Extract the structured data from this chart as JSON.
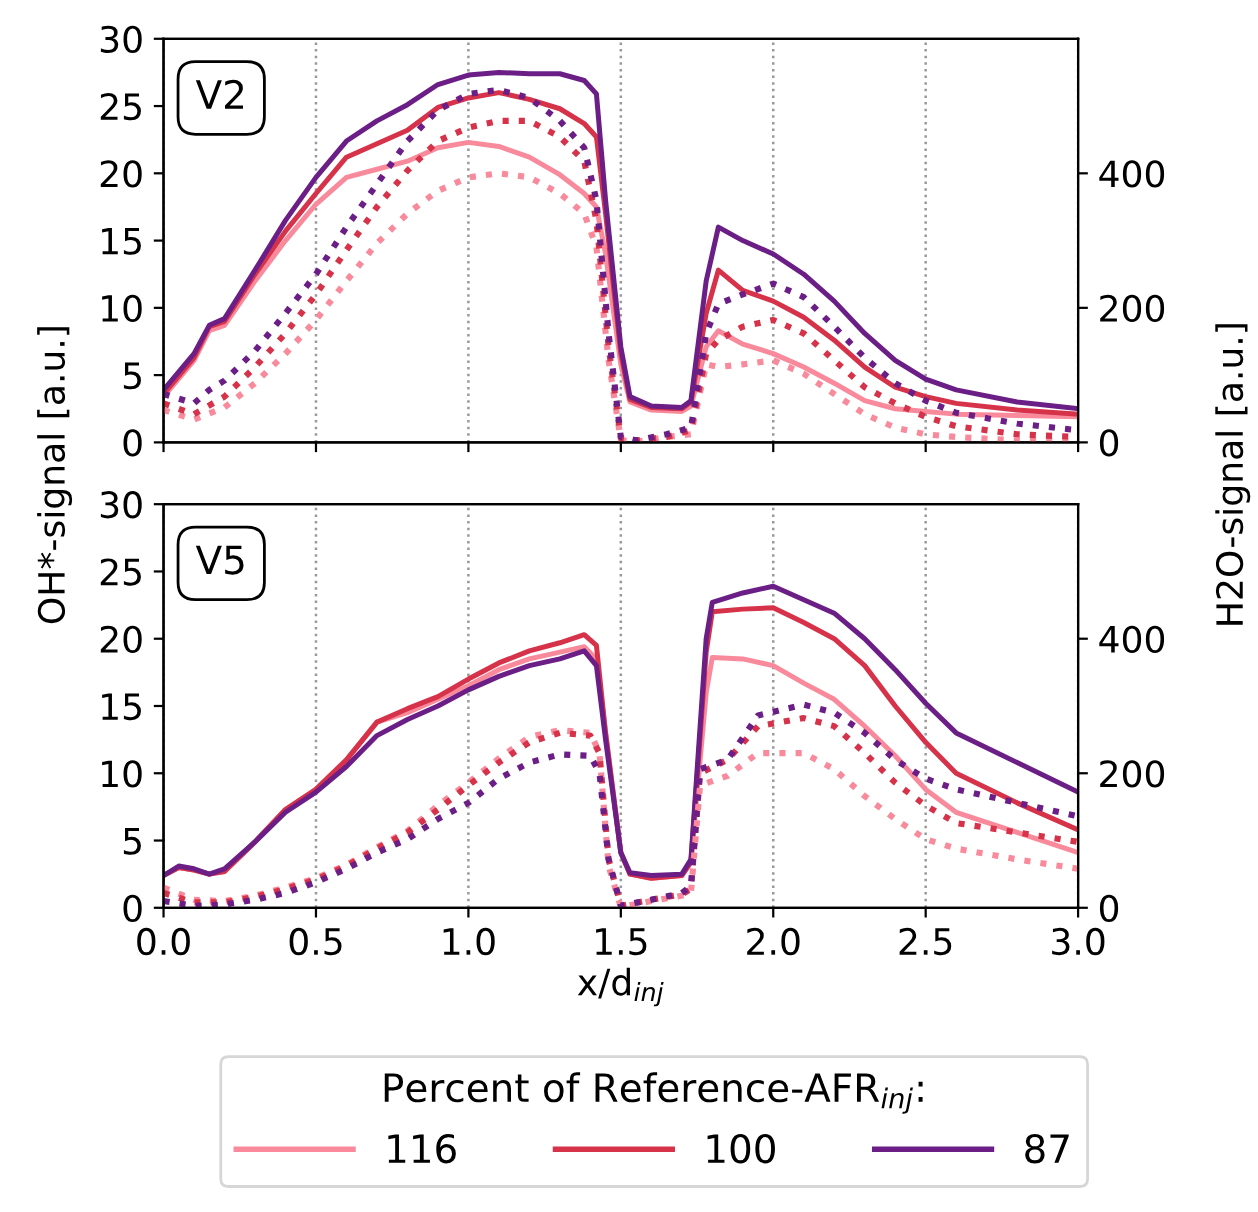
{
  "chart_data": [
    {
      "type": "line",
      "annotations": [
        "V2"
      ],
      "ylabel": "OH*-signal [a.u.]",
      "y2label": "H2O-signal [a.u.]",
      "xlim": [
        0,
        3
      ],
      "xticks": [
        0,
        0.5,
        1,
        1.5,
        2,
        2.5,
        3
      ],
      "ylim": [
        0,
        30
      ],
      "yticks": [
        0,
        5,
        10,
        15,
        20,
        25,
        30
      ],
      "y2lim": [
        0,
        600
      ],
      "y2ticks": [
        0,
        200,
        400
      ],
      "grid": "x",
      "tick_labels": "y",
      "series": [
        {
          "color": "#f98a9c",
          "line_style": "solid",
          "x": [
            0,
            0.1,
            0.15,
            0.2,
            0.3,
            0.4,
            0.5,
            0.6,
            0.7,
            0.8,
            0.9,
            1.0,
            1.1,
            1.2,
            1.3,
            1.38,
            1.42,
            1.45,
            1.5,
            1.53,
            1.6,
            1.7,
            1.73,
            1.78,
            1.82,
            1.9,
            2.0,
            2.1,
            2.2,
            2.3,
            2.4,
            2.5,
            2.6,
            2.8,
            3.0
          ],
          "values": [
            3.4,
            6.1,
            8.3,
            8.7,
            12.0,
            15.0,
            17.7,
            19.7,
            20.3,
            20.9,
            21.9,
            22.3,
            22.0,
            21.2,
            19.9,
            18.5,
            17.5,
            14,
            5.8,
            3.0,
            2.4,
            2.3,
            2.7,
            7.1,
            8.3,
            7.3,
            6.6,
            5.6,
            4.4,
            3.1,
            2.5,
            2.3,
            2.1,
            2.0,
            1.9
          ]
        },
        {
          "color": "#d6334b",
          "line_style": "solid",
          "x": [
            0,
            0.1,
            0.15,
            0.2,
            0.3,
            0.4,
            0.5,
            0.6,
            0.7,
            0.8,
            0.9,
            1.0,
            1.1,
            1.2,
            1.3,
            1.38,
            1.42,
            1.45,
            1.5,
            1.53,
            1.6,
            1.7,
            1.73,
            1.78,
            1.82,
            1.9,
            2.0,
            2.1,
            2.2,
            2.3,
            2.4,
            2.5,
            2.6,
            2.8,
            3.0
          ],
          "values": [
            3.6,
            6.3,
            8.6,
            9.0,
            12.5,
            15.7,
            18.5,
            21.2,
            22.2,
            23.2,
            24.9,
            25.6,
            26.0,
            25.5,
            24.8,
            23.7,
            22.7,
            17,
            6.6,
            3.2,
            2.6,
            2.5,
            3.0,
            9.6,
            12.8,
            11.3,
            10.5,
            9.3,
            7.6,
            5.6,
            4.1,
            3.4,
            2.9,
            2.4,
            2.1
          ]
        },
        {
          "color": "#6b1f86",
          "line_style": "solid",
          "x": [
            0,
            0.1,
            0.15,
            0.2,
            0.3,
            0.4,
            0.5,
            0.6,
            0.7,
            0.8,
            0.9,
            1.0,
            1.1,
            1.2,
            1.3,
            1.38,
            1.42,
            1.45,
            1.5,
            1.53,
            1.6,
            1.7,
            1.73,
            1.78,
            1.82,
            1.9,
            2.0,
            2.1,
            2.2,
            2.3,
            2.4,
            2.5,
            2.6,
            2.8,
            3.0
          ],
          "values": [
            3.9,
            6.6,
            8.7,
            9.2,
            12.8,
            16.5,
            19.7,
            22.4,
            23.9,
            25.1,
            26.6,
            27.3,
            27.5,
            27.4,
            27.4,
            26.9,
            25.9,
            18,
            7.1,
            3.4,
            2.7,
            2.6,
            3.1,
            12,
            16.0,
            15,
            14.0,
            12.5,
            10.5,
            8.1,
            6.1,
            4.7,
            3.9,
            3.0,
            2.5
          ]
        },
        {
          "color": "#f98a9c",
          "line_style": "dotted",
          "axis": "y2",
          "x": [
            0,
            0.1,
            0.2,
            0.3,
            0.4,
            0.5,
            0.6,
            0.7,
            0.8,
            0.9,
            1.0,
            1.1,
            1.2,
            1.3,
            1.38,
            1.42,
            1.46,
            1.5,
            1.55,
            1.65,
            1.73,
            1.78,
            1.82,
            1.9,
            2.0,
            2.1,
            2.2,
            2.3,
            2.4,
            2.5,
            2.6,
            2.8,
            3.0
          ],
          "values": [
            48,
            34,
            52,
            88,
            132,
            182,
            240,
            296,
            340,
            374,
            394,
            400,
            394,
            370,
            340,
            290,
            122,
            3,
            1,
            8,
            12,
            116,
            112,
            116,
            122,
            102,
            72,
            42,
            22,
            12,
            8,
            3,
            1
          ]
        },
        {
          "color": "#d6334b",
          "line_style": "dotted",
          "axis": "y2",
          "x": [
            0,
            0.1,
            0.2,
            0.3,
            0.4,
            0.5,
            0.6,
            0.7,
            0.8,
            0.9,
            1.0,
            1.1,
            1.2,
            1.3,
            1.38,
            1.42,
            1.46,
            1.5,
            1.55,
            1.65,
            1.73,
            1.78,
            1.82,
            1.9,
            2.0,
            2.1,
            2.2,
            2.3,
            2.4,
            2.5,
            2.6,
            2.8,
            3.0
          ],
          "values": [
            58,
            42,
            68,
            112,
            162,
            220,
            286,
            350,
            404,
            448,
            468,
            478,
            478,
            454,
            418,
            330,
            142,
            6,
            3,
            8,
            18,
            132,
            152,
            172,
            182,
            162,
            122,
            82,
            58,
            38,
            24,
            12,
            8
          ]
        },
        {
          "color": "#6b1f86",
          "line_style": "dotted",
          "axis": "y2",
          "x": [
            0,
            0.1,
            0.15,
            0.2,
            0.3,
            0.4,
            0.5,
            0.6,
            0.7,
            0.8,
            0.9,
            1.0,
            1.1,
            1.2,
            1.3,
            1.38,
            1.42,
            1.46,
            1.5,
            1.55,
            1.65,
            1.73,
            1.78,
            1.82,
            1.9,
            2.0,
            2.1,
            2.2,
            2.3,
            2.4,
            2.5,
            2.6,
            2.8,
            3.0
          ],
          "values": [
            72,
            58,
            78,
            92,
            136,
            192,
            250,
            320,
            384,
            448,
            494,
            518,
            524,
            512,
            478,
            438,
            360,
            162,
            8,
            3,
            12,
            22,
            162,
            206,
            220,
            236,
            216,
            172,
            126,
            88,
            62,
            44,
            28,
            18
          ]
        }
      ]
    },
    {
      "type": "line",
      "annotations": [
        "V5"
      ],
      "xlabel": "x/d$_{inj}$",
      "legend_title": "Percent of Reference-AFR$_{inj}$:",
      "legend": "bottom",
      "xlim": [
        0,
        3
      ],
      "xticks": [
        {
          "value": 0,
          "label": "0.0"
        },
        0.5,
        {
          "value": 1,
          "label": "1.0"
        },
        1.5,
        {
          "value": 2,
          "label": "2.0"
        },
        2.5,
        {
          "value": 3,
          "label": "3.0"
        }
      ],
      "ylim": [
        0,
        30
      ],
      "yticks": [
        0,
        5,
        10,
        15,
        20,
        25,
        30
      ],
      "y2lim": [
        0,
        600
      ],
      "y2ticks": [
        0,
        200,
        400
      ],
      "grid": "x",
      "series": [
        {
          "name": "116",
          "color": "#f98a9c",
          "line_style": "solid",
          "x": [
            0,
            0.05,
            0.1,
            0.15,
            0.2,
            0.3,
            0.4,
            0.5,
            0.6,
            0.7,
            0.8,
            0.9,
            1.0,
            1.1,
            1.2,
            1.3,
            1.38,
            1.42,
            1.45,
            1.5,
            1.53,
            1.6,
            1.7,
            1.73,
            1.78,
            1.8,
            1.9,
            2.0,
            2.1,
            2.2,
            2.3,
            2.4,
            2.5,
            2.6,
            2.8,
            3.0
          ],
          "values": [
            2.4,
            3.0,
            2.8,
            2.5,
            2.7,
            4.9,
            7.3,
            8.8,
            11.0,
            13.8,
            14.5,
            15.5,
            16.5,
            17.7,
            18.5,
            19.0,
            19.4,
            18.5,
            13.0,
            4.1,
            2.5,
            2.2,
            2.4,
            3.4,
            16,
            18.6,
            18.5,
            18.0,
            16.7,
            15.5,
            13.5,
            11.3,
            8.8,
            7.1,
            5.6,
            4.1
          ]
        },
        {
          "name": "100",
          "color": "#d6334b",
          "line_style": "solid",
          "x": [
            0,
            0.05,
            0.1,
            0.15,
            0.2,
            0.3,
            0.4,
            0.5,
            0.6,
            0.7,
            0.8,
            0.9,
            1.0,
            1.1,
            1.2,
            1.3,
            1.38,
            1.42,
            1.45,
            1.5,
            1.53,
            1.6,
            1.7,
            1.73,
            1.78,
            1.8,
            1.9,
            2.0,
            2.1,
            2.2,
            2.3,
            2.4,
            2.5,
            2.6,
            2.8,
            3.0
          ],
          "values": [
            2.4,
            3.0,
            2.8,
            2.5,
            2.7,
            4.9,
            7.3,
            8.8,
            11.0,
            13.8,
            14.8,
            15.7,
            17.0,
            18.2,
            19.1,
            19.7,
            20.3,
            19.5,
            13.0,
            4.1,
            2.5,
            2.2,
            2.4,
            3.4,
            19,
            22.0,
            22.2,
            22.3,
            21.2,
            20.0,
            18.0,
            15.0,
            12.3,
            10.0,
            7.8,
            5.8
          ]
        },
        {
          "name": "87",
          "color": "#6b1f86",
          "line_style": "solid",
          "x": [
            0,
            0.05,
            0.1,
            0.15,
            0.2,
            0.3,
            0.4,
            0.5,
            0.6,
            0.7,
            0.8,
            0.9,
            1.0,
            1.1,
            1.2,
            1.3,
            1.38,
            1.42,
            1.45,
            1.5,
            1.53,
            1.6,
            1.7,
            1.73,
            1.78,
            1.8,
            1.9,
            2.0,
            2.1,
            2.2,
            2.3,
            2.4,
            2.5,
            2.6,
            2.8,
            3.0
          ],
          "values": [
            2.4,
            3.1,
            2.9,
            2.5,
            2.9,
            4.9,
            7.1,
            8.6,
            10.5,
            12.8,
            14.0,
            15.0,
            16.2,
            17.2,
            18.0,
            18.5,
            19.1,
            18.0,
            12.5,
            4.1,
            2.6,
            2.4,
            2.5,
            3.6,
            20,
            22.7,
            23.4,
            23.9,
            22.9,
            21.9,
            20.0,
            17.7,
            15.2,
            13.0,
            10.8,
            8.6
          ]
        },
        {
          "color": "#f98a9c",
          "line_style": "dotted",
          "axis": "y2",
          "x": [
            0,
            0.1,
            0.2,
            0.3,
            0.4,
            0.5,
            0.6,
            0.7,
            0.8,
            0.9,
            1.0,
            1.1,
            1.2,
            1.3,
            1.4,
            1.43,
            1.46,
            1.5,
            1.6,
            1.7,
            1.73,
            1.76,
            1.85,
            1.95,
            2.1,
            2.2,
            2.3,
            2.4,
            2.5,
            2.6,
            2.8,
            3.0
          ],
          "values": [
            30,
            12,
            10,
            18,
            30,
            44,
            64,
            90,
            114,
            152,
            186,
            222,
            254,
            264,
            260,
            230,
            62,
            1,
            10,
            18,
            22,
            182,
            196,
            230,
            230,
            206,
            166,
            132,
            102,
            88,
            72,
            58
          ]
        },
        {
          "color": "#d6334b",
          "line_style": "dotted",
          "axis": "y2",
          "x": [
            0,
            0.1,
            0.2,
            0.3,
            0.4,
            0.5,
            0.6,
            0.7,
            0.8,
            0.9,
            1.0,
            1.1,
            1.2,
            1.3,
            1.4,
            1.43,
            1.46,
            1.5,
            1.6,
            1.7,
            1.73,
            1.76,
            1.85,
            1.95,
            2.1,
            2.2,
            2.3,
            2.4,
            2.5,
            2.6,
            2.8,
            3.0
          ],
          "values": [
            22,
            8,
            8,
            16,
            28,
            42,
            62,
            88,
            112,
            146,
            182,
            216,
            246,
            260,
            256,
            230,
            72,
            3,
            12,
            20,
            28,
            200,
            220,
            270,
            282,
            270,
            230,
            186,
            152,
            126,
            112,
            98
          ]
        },
        {
          "color": "#6b1f86",
          "line_style": "dotted",
          "axis": "y2",
          "x": [
            0,
            0.1,
            0.2,
            0.3,
            0.4,
            0.5,
            0.6,
            0.7,
            0.8,
            0.9,
            1.0,
            1.1,
            1.2,
            1.3,
            1.4,
            1.43,
            1.46,
            1.5,
            1.6,
            1.7,
            1.73,
            1.76,
            1.85,
            1.95,
            2.1,
            2.2,
            2.3,
            2.4,
            2.5,
            2.6,
            2.8,
            3.0
          ],
          "values": [
            10,
            3,
            5,
            12,
            22,
            38,
            58,
            82,
            102,
            132,
            156,
            192,
            216,
            228,
            226,
            200,
            72,
            3,
            12,
            22,
            32,
            206,
            220,
            286,
            302,
            290,
            260,
            220,
            192,
            176,
            156,
            136
          ]
        }
      ]
    }
  ]
}
